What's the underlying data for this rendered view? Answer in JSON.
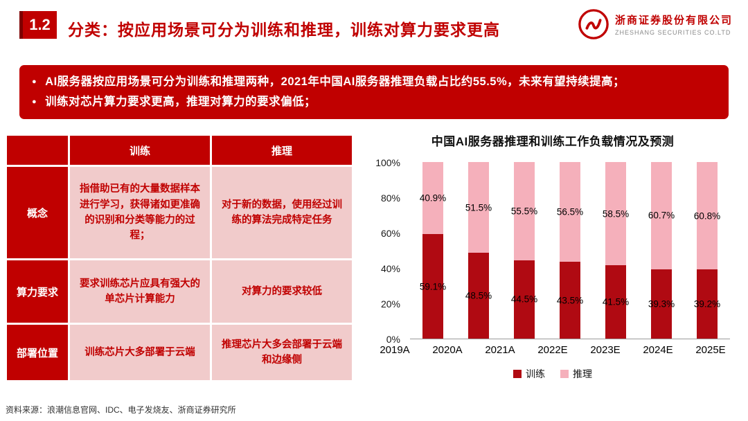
{
  "slide": {
    "badge": "1.2",
    "title": "分类：按应用场景可分为训练和推理，训练对算力要求更高",
    "source": "资料来源：浪潮信息官网、IDC、电子发烧友、浙商证券研究所"
  },
  "logo": {
    "company_cn": "浙商证券股份有限公司",
    "company_en": "ZHESHANG SECURITIES CO.LTD"
  },
  "banner": {
    "bullets": [
      "AI服务器按应用场景可分为训练和推理两种，2021年中国AI服务器推理负载占比约55.5%，未来有望持续提高；",
      "训练对芯片算力要求更高，推理对算力的要求偏低；"
    ]
  },
  "table": {
    "corner": "",
    "col_headers": [
      "训练",
      "推理"
    ],
    "rows": [
      {
        "label": "概念",
        "train": "指借助已有的大量数据样本进行学习，获得诸如更准确的识别和分类等能力的过程；",
        "infer": "对于新的数据，使用经过训练的算法完成特定任务"
      },
      {
        "label": "算力要求",
        "train": "要求训练芯片应具有强大的单芯片计算能力",
        "infer": "对算力的要求较低"
      },
      {
        "label": "部署位置",
        "train": "训练芯片大多部署于云端",
        "infer": "推理芯片大多会部署于云端和边缘侧"
      }
    ]
  },
  "chart_data": {
    "type": "bar",
    "stacked": true,
    "title": "中国AI服务器推理和训练工作负载情况及预测",
    "categories": [
      "2019A",
      "2020A",
      "2021A",
      "2022E",
      "2023E",
      "2024E",
      "2025E"
    ],
    "series": [
      {
        "name": "训练",
        "color": "#B00A12",
        "values": [
          59.1,
          48.5,
          44.5,
          43.5,
          41.5,
          39.3,
          39.2
        ]
      },
      {
        "name": "推理",
        "color": "#F5B0BB",
        "values": [
          40.9,
          51.5,
          55.5,
          56.5,
          58.5,
          60.7,
          60.8
        ]
      }
    ],
    "value_suffix": "%",
    "y_ticks": [
      "100%",
      "80%",
      "60%",
      "40%",
      "20%",
      "0%"
    ],
    "ylim": [
      0,
      100
    ],
    "grid": false,
    "legend_position": "bottom"
  },
  "colors": {
    "primary_red": "#C00000",
    "table_cell_bg": "#F1CBCB",
    "bar_train": "#B00A12",
    "bar_infer": "#F5B0BB"
  }
}
